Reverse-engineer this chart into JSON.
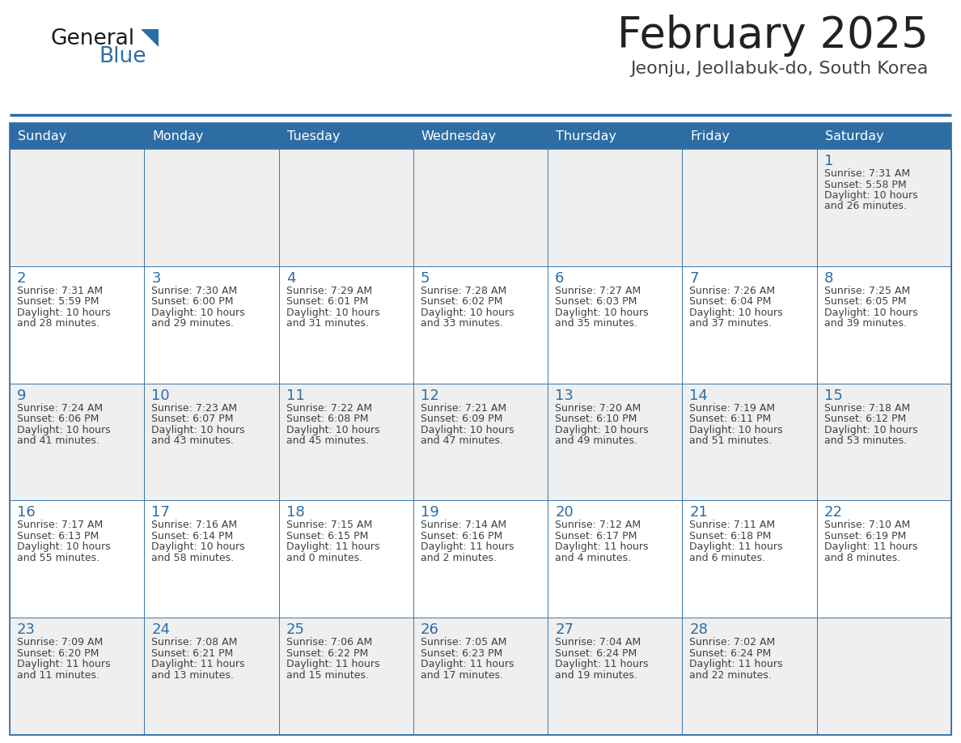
{
  "title": "February 2025",
  "subtitle": "Jeonju, Jeollabuk-do, South Korea",
  "days_of_week": [
    "Sunday",
    "Monday",
    "Tuesday",
    "Wednesday",
    "Thursday",
    "Friday",
    "Saturday"
  ],
  "header_bg": "#2e6da4",
  "header_text": "#ffffff",
  "cell_bg_odd": "#efefef",
  "cell_bg_even": "#ffffff",
  "cell_border": "#2e6da4",
  "day_number_color": "#2e6da4",
  "info_text_color": "#404040",
  "title_color": "#222222",
  "subtitle_color": "#444444",
  "logo_general_color": "#1a1a1a",
  "logo_blue_color": "#2e6da4",
  "calendar_data": [
    [
      null,
      null,
      null,
      null,
      null,
      null,
      {
        "day": 1,
        "sunrise": "7:31 AM",
        "sunset": "5:58 PM",
        "daylight": "10 hours and 26 minutes."
      }
    ],
    [
      {
        "day": 2,
        "sunrise": "7:31 AM",
        "sunset": "5:59 PM",
        "daylight": "10 hours and 28 minutes."
      },
      {
        "day": 3,
        "sunrise": "7:30 AM",
        "sunset": "6:00 PM",
        "daylight": "10 hours and 29 minutes."
      },
      {
        "day": 4,
        "sunrise": "7:29 AM",
        "sunset": "6:01 PM",
        "daylight": "10 hours and 31 minutes."
      },
      {
        "day": 5,
        "sunrise": "7:28 AM",
        "sunset": "6:02 PM",
        "daylight": "10 hours and 33 minutes."
      },
      {
        "day": 6,
        "sunrise": "7:27 AM",
        "sunset": "6:03 PM",
        "daylight": "10 hours and 35 minutes."
      },
      {
        "day": 7,
        "sunrise": "7:26 AM",
        "sunset": "6:04 PM",
        "daylight": "10 hours and 37 minutes."
      },
      {
        "day": 8,
        "sunrise": "7:25 AM",
        "sunset": "6:05 PM",
        "daylight": "10 hours and 39 minutes."
      }
    ],
    [
      {
        "day": 9,
        "sunrise": "7:24 AM",
        "sunset": "6:06 PM",
        "daylight": "10 hours and 41 minutes."
      },
      {
        "day": 10,
        "sunrise": "7:23 AM",
        "sunset": "6:07 PM",
        "daylight": "10 hours and 43 minutes."
      },
      {
        "day": 11,
        "sunrise": "7:22 AM",
        "sunset": "6:08 PM",
        "daylight": "10 hours and 45 minutes."
      },
      {
        "day": 12,
        "sunrise": "7:21 AM",
        "sunset": "6:09 PM",
        "daylight": "10 hours and 47 minutes."
      },
      {
        "day": 13,
        "sunrise": "7:20 AM",
        "sunset": "6:10 PM",
        "daylight": "10 hours and 49 minutes."
      },
      {
        "day": 14,
        "sunrise": "7:19 AM",
        "sunset": "6:11 PM",
        "daylight": "10 hours and 51 minutes."
      },
      {
        "day": 15,
        "sunrise": "7:18 AM",
        "sunset": "6:12 PM",
        "daylight": "10 hours and 53 minutes."
      }
    ],
    [
      {
        "day": 16,
        "sunrise": "7:17 AM",
        "sunset": "6:13 PM",
        "daylight": "10 hours and 55 minutes."
      },
      {
        "day": 17,
        "sunrise": "7:16 AM",
        "sunset": "6:14 PM",
        "daylight": "10 hours and 58 minutes."
      },
      {
        "day": 18,
        "sunrise": "7:15 AM",
        "sunset": "6:15 PM",
        "daylight": "11 hours and 0 minutes."
      },
      {
        "day": 19,
        "sunrise": "7:14 AM",
        "sunset": "6:16 PM",
        "daylight": "11 hours and 2 minutes."
      },
      {
        "day": 20,
        "sunrise": "7:12 AM",
        "sunset": "6:17 PM",
        "daylight": "11 hours and 4 minutes."
      },
      {
        "day": 21,
        "sunrise": "7:11 AM",
        "sunset": "6:18 PM",
        "daylight": "11 hours and 6 minutes."
      },
      {
        "day": 22,
        "sunrise": "7:10 AM",
        "sunset": "6:19 PM",
        "daylight": "11 hours and 8 minutes."
      }
    ],
    [
      {
        "day": 23,
        "sunrise": "7:09 AM",
        "sunset": "6:20 PM",
        "daylight": "11 hours and 11 minutes."
      },
      {
        "day": 24,
        "sunrise": "7:08 AM",
        "sunset": "6:21 PM",
        "daylight": "11 hours and 13 minutes."
      },
      {
        "day": 25,
        "sunrise": "7:06 AM",
        "sunset": "6:22 PM",
        "daylight": "11 hours and 15 minutes."
      },
      {
        "day": 26,
        "sunrise": "7:05 AM",
        "sunset": "6:23 PM",
        "daylight": "11 hours and 17 minutes."
      },
      {
        "day": 27,
        "sunrise": "7:04 AM",
        "sunset": "6:24 PM",
        "daylight": "11 hours and 19 minutes."
      },
      {
        "day": 28,
        "sunrise": "7:02 AM",
        "sunset": "6:24 PM",
        "daylight": "11 hours and 22 minutes."
      },
      null
    ]
  ]
}
